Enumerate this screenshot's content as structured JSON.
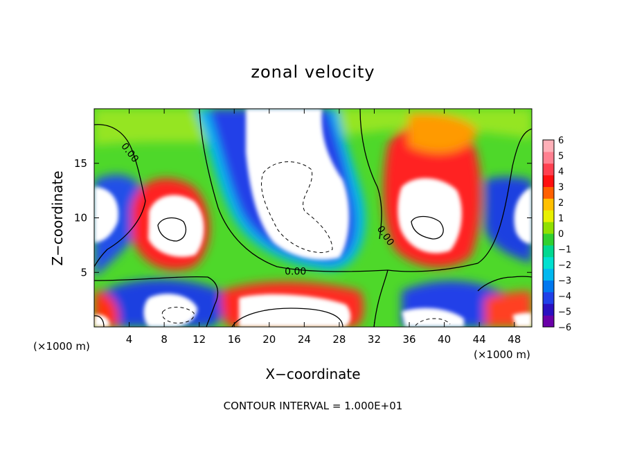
{
  "chart_data": {
    "type": "heatmap",
    "title": "zonal velocity",
    "xlabel": "X−coordinate",
    "ylabel": "Z−coordinate",
    "x_unit_left": "(×1000 m)",
    "x_unit_right": "(×1000 m)",
    "footer": "CONTOUR INTERVAL = 1.000E+01",
    "xlim": [
      0,
      50
    ],
    "ylim": [
      0,
      20
    ],
    "x_ticks": [
      4,
      8,
      12,
      16,
      20,
      24,
      28,
      32,
      36,
      40,
      44,
      48
    ],
    "x_tick_labels": [
      "4",
      "8",
      "12",
      "16",
      "20",
      "24",
      "28",
      "32",
      "36",
      "40",
      "44",
      "48"
    ],
    "y_ticks": [
      5,
      10,
      15
    ],
    "y_tick_labels": [
      "5",
      "10",
      "15"
    ],
    "contour_labels": [
      {
        "text": "0.00",
        "x": 3.8,
        "y": 15.8,
        "angle": 52
      },
      {
        "text": "0.00",
        "x": 23.0,
        "y": 4.8,
        "angle": 0
      },
      {
        "text": "0.00",
        "x": 33.0,
        "y": 8.2,
        "angle": 55
      }
    ],
    "colorbar": {
      "min": -6,
      "max": 6,
      "tick_labels": [
        "6",
        "5",
        "4",
        "3",
        "2",
        "1",
        "0",
        "−1",
        "−2",
        "−3",
        "−4",
        "−5",
        "−6"
      ],
      "colors": [
        "#6a00a8",
        "#2a10c0",
        "#2040e8",
        "#0078f0",
        "#00b8f0",
        "#00e0d0",
        "#00d890",
        "#30d030",
        "#90e000",
        "#e8f000",
        "#ffc000",
        "#ff6000",
        "#ff1010",
        "#ff4050",
        "#ff8090",
        "#ffb0b8"
      ]
    }
  }
}
